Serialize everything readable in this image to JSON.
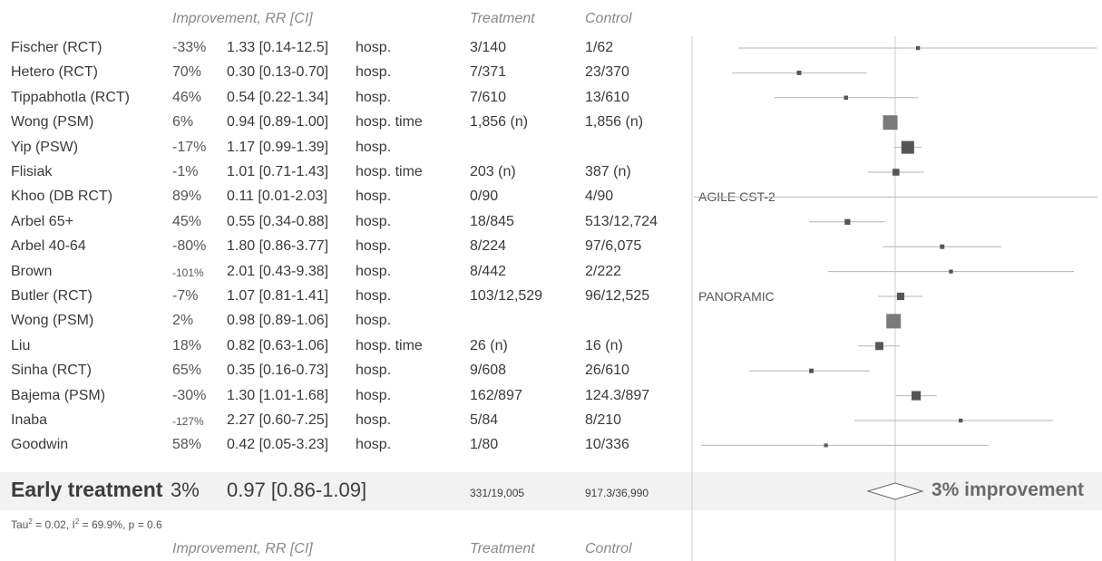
{
  "headers": {
    "improvement": "Improvement, RR [CI]",
    "treatment": "Treatment",
    "control": "Control"
  },
  "chart_data": {
    "type": "forest",
    "x_scale": "log",
    "null_value": 1.0,
    "studies": [
      {
        "name": "Fischer (RCT)",
        "improvement": "-33%",
        "rr_text": "1.33 [0.14-12.5]",
        "outcome": "hosp.",
        "treatment": "3/140",
        "control": "1/62",
        "rr": 1.33,
        "lo": 0.14,
        "hi": 12.5,
        "weight": 0.1
      },
      {
        "name": "Hetero (RCT)",
        "improvement": "70%",
        "rr_text": "0.30 [0.13-0.70]",
        "outcome": "hosp.",
        "treatment": "7/371",
        "control": "23/370",
        "rr": 0.3,
        "lo": 0.13,
        "hi": 0.7,
        "weight": 0.15
      },
      {
        "name": "Tippabhotla (RCT)",
        "improvement": "46%",
        "rr_text": "0.54 [0.22-1.34]",
        "outcome": "hosp.",
        "treatment": "7/610",
        "control": "13/610",
        "rr": 0.54,
        "lo": 0.22,
        "hi": 1.34,
        "weight": 0.12
      },
      {
        "name": "Wong (PSM)",
        "improvement": "6%",
        "rr_text": "0.94 [0.89-1.00]",
        "outcome": "hosp. time",
        "treatment": "1,856 (n)",
        "control": "1,856 (n)",
        "rr": 0.94,
        "lo": 0.89,
        "hi": 1.0,
        "weight": 1.0
      },
      {
        "name": "Yip (PSW)",
        "improvement": "-17%",
        "rr_text": "1.17 [0.99-1.39]",
        "outcome": "hosp.",
        "treatment": "",
        "control": "",
        "rr": 1.17,
        "lo": 0.99,
        "hi": 1.39,
        "weight": 0.85
      },
      {
        "name": "Flisiak",
        "improvement": "-1%",
        "rr_text": "1.01 [0.71-1.43]",
        "outcome": "hosp. time",
        "treatment": "203 (n)",
        "control": "387 (n)",
        "rr": 1.01,
        "lo": 0.71,
        "hi": 1.43,
        "weight": 0.35
      },
      {
        "name": "Khoo (DB RCT)",
        "improvement": "89%",
        "rr_text": "0.11 [0.01-2.03]",
        "outcome": "hosp.",
        "treatment": "0/90",
        "control": "4/90",
        "rr": 0.11,
        "lo": 0.01,
        "hi": 2.03,
        "weight": 0,
        "note": "AGILE CST-2"
      },
      {
        "name": "Arbel 65+",
        "improvement": "45%",
        "rr_text": "0.55 [0.34-0.88]",
        "outcome": "hosp.",
        "treatment": "18/845",
        "control": "513/12,724",
        "rr": 0.55,
        "lo": 0.34,
        "hi": 0.88,
        "weight": 0.25
      },
      {
        "name": "Arbel 40-64",
        "improvement": "-80%",
        "rr_text": "1.80 [0.86-3.77]",
        "outcome": "hosp.",
        "treatment": "8/224",
        "control": "97/6,075",
        "rr": 1.8,
        "lo": 0.86,
        "hi": 3.77,
        "weight": 0.15
      },
      {
        "name": "Brown",
        "improvement": "-101%",
        "rr_text": "2.01 [0.43-9.38]",
        "outcome": "hosp.",
        "treatment": "8/442",
        "control": "2/222",
        "rr": 2.01,
        "lo": 0.43,
        "hi": 9.38,
        "weight": 0.1
      },
      {
        "name": "Butler (RCT)",
        "improvement": "-7%",
        "rr_text": "1.07 [0.81-1.41]",
        "outcome": "hosp.",
        "treatment": "103/12,529",
        "control": "96/12,525",
        "rr": 1.07,
        "lo": 0.81,
        "hi": 1.41,
        "weight": 0.4,
        "note": "PANORAMIC"
      },
      {
        "name": "Wong (PSM)",
        "improvement": "2%",
        "rr_text": "0.98 [0.89-1.06]",
        "outcome": "hosp.",
        "treatment": "",
        "control": "",
        "rr": 0.98,
        "lo": 0.89,
        "hi": 1.06,
        "weight": 1.0
      },
      {
        "name": "Liu",
        "improvement": "18%",
        "rr_text": "0.82 [0.63-1.06]",
        "outcome": "hosp. time",
        "treatment": "26 (n)",
        "control": "16 (n)",
        "rr": 0.82,
        "lo": 0.63,
        "hi": 1.06,
        "weight": 0.45
      },
      {
        "name": "Sinha (RCT)",
        "improvement": "65%",
        "rr_text": "0.35 [0.16-0.73]",
        "outcome": "hosp.",
        "treatment": "9/608",
        "control": "26/610",
        "rr": 0.35,
        "lo": 0.16,
        "hi": 0.73,
        "weight": 0.15
      },
      {
        "name": "Bajema (PSM)",
        "improvement": "-30%",
        "rr_text": "1.30 [1.01-1.68]",
        "outcome": "hosp.",
        "treatment": "162/897",
        "control": "124.3/897",
        "rr": 1.3,
        "lo": 1.01,
        "hi": 1.68,
        "weight": 0.55
      },
      {
        "name": "Inaba",
        "improvement": "-127%",
        "rr_text": "2.27 [0.60-7.25]",
        "outcome": "hosp.",
        "treatment": "5/84",
        "control": "8/210",
        "rr": 2.27,
        "lo": 0.6,
        "hi": 7.25,
        "weight": 0.1
      },
      {
        "name": "Goodwin",
        "improvement": "58%",
        "rr_text": "0.42 [0.05-3.23]",
        "outcome": "hosp.",
        "treatment": "1/80",
        "control": "10/336",
        "rr": 0.42,
        "lo": 0.05,
        "hi": 3.23,
        "weight": 0.08
      }
    ],
    "summary": {
      "name": "Early treatment",
      "improvement": "3%",
      "rr_text": "0.97 [0.86-1.09]",
      "treatment": "331/19,005",
      "control": "917.3/36,990",
      "rr": 0.97,
      "lo": 0.86,
      "hi": 1.09,
      "label": "3% improvement"
    },
    "heterogeneity": {
      "tau_prefix": "Tau",
      "tau_sup": "2",
      "tau_value": " = 0.02, I",
      "i_sup": "2",
      "rest": " = 69.9%, p = 0.6"
    }
  },
  "colors": {
    "ci_line": "#b4b4b4",
    "box": "#555555",
    "box_large": "#7a7a7a",
    "null_line": "#cccccc",
    "band": "#f2f2f2"
  }
}
